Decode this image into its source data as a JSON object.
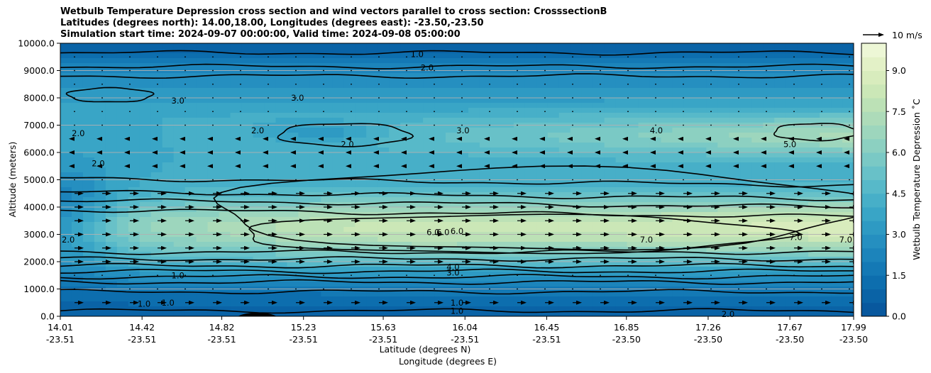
{
  "chart_data": {
    "type": "heatmap",
    "title_lines": [
      "Wetbulb Temperature Depression cross section and wind vectors parallel to cross section: CrosssectionB",
      "Latitudes (degrees north): 14.00,18.00, Longitudes (degrees east): -23.50,-23.50",
      "Simulation start time: 2024-09-07 00:00:00, Valid time: 2024-09-08 05:00:00"
    ],
    "xlabel_lat": "Latitude (degrees N)",
    "xlabel_lon": "Longitude (degrees E)",
    "ylabel": "Altitude (meters)",
    "colorbar_label": "Wetbulb Temperature Depression ˚C",
    "quiver_key": "10 m/s",
    "x_ticks": [
      {
        "lat": "14.01",
        "lon": "-23.51",
        "v": 14.01
      },
      {
        "lat": "14.42",
        "lon": "-23.51",
        "v": 14.42
      },
      {
        "lat": "14.82",
        "lon": "-23.51",
        "v": 14.82
      },
      {
        "lat": "15.23",
        "lon": "-23.51",
        "v": 15.23
      },
      {
        "lat": "15.63",
        "lon": "-23.51",
        "v": 15.63
      },
      {
        "lat": "16.04",
        "lon": "-23.51",
        "v": 16.04
      },
      {
        "lat": "16.45",
        "lon": "-23.51",
        "v": 16.45
      },
      {
        "lat": "16.85",
        "lon": "-23.50",
        "v": 16.85
      },
      {
        "lat": "17.26",
        "lon": "-23.50",
        "v": 17.26
      },
      {
        "lat": "17.67",
        "lon": "-23.50",
        "v": 17.67
      },
      {
        "lat": "17.99",
        "lon": "-23.50",
        "v": 17.99
      }
    ],
    "xlim": [
      14.01,
      17.99
    ],
    "y_ticks": [
      "0.0",
      "1000.0",
      "2000.0",
      "3000.0",
      "4000.0",
      "5000.0",
      "6000.0",
      "7000.0",
      "8000.0",
      "9000.0",
      "10000.0"
    ],
    "ylim": [
      0,
      10000
    ],
    "colorbar_ticks": [
      "0.0",
      "1.5",
      "3.0",
      "4.5",
      "6.0",
      "7.5",
      "9.0"
    ],
    "colorbar_range": [
      0,
      10
    ],
    "levels": [
      0,
      0.5,
      1,
      1.5,
      2,
      2.5,
      3,
      3.5,
      4,
      4.5,
      5,
      5.5,
      6,
      6.5,
      7,
      7.5,
      8,
      8.5,
      9,
      9.5,
      10
    ],
    "colormap": [
      "#08589e",
      "#0a63a6",
      "#0d6eae",
      "#1479b5",
      "#1c84bb",
      "#258fc0",
      "#2e9ac3",
      "#39a5c6",
      "#47afc8",
      "#57b9c9",
      "#68c1c8",
      "#7ac9c5",
      "#8cd0c1",
      "#9dd6bd",
      "#addbb9",
      "#bce1b6",
      "#cbe7b7",
      "#d8ecbd",
      "#e3f1c7",
      "#edf7d6"
    ],
    "grid": "horizontal",
    "wind": "mostly +x at 2000–5000 m and near 500 m",
    "contour_labels": [
      {
        "t": "1.0",
        "lat": 15.8,
        "alt": 9600
      },
      {
        "t": "2.0",
        "lat": 15.85,
        "alt": 9100
      },
      {
        "t": "3.0",
        "lat": 14.6,
        "alt": 7900
      },
      {
        "t": "3.0",
        "lat": 15.2,
        "alt": 8000
      },
      {
        "t": "2.0",
        "lat": 14.1,
        "alt": 6700
      },
      {
        "t": "2.0",
        "lat": 15.0,
        "alt": 6800
      },
      {
        "t": "2.0",
        "lat": 15.45,
        "alt": 6300
      },
      {
        "t": "3.0",
        "lat": 16.03,
        "alt": 6800
      },
      {
        "t": "4.0",
        "lat": 17.0,
        "alt": 6800
      },
      {
        "t": "5.0",
        "lat": 17.67,
        "alt": 6300
      },
      {
        "t": "2.0",
        "lat": 14.2,
        "alt": 5600
      },
      {
        "t": "2.0",
        "lat": 14.05,
        "alt": 2800
      },
      {
        "t": "6.0",
        "lat": 15.88,
        "alt": 3080
      },
      {
        "t": "6.0",
        "lat": 15.93,
        "alt": 3080
      },
      {
        "t": "6.0",
        "lat": 16.0,
        "alt": 3120
      },
      {
        "t": "7.0",
        "lat": 16.95,
        "alt": 2800
      },
      {
        "t": "7.0",
        "lat": 17.7,
        "alt": 2900
      },
      {
        "t": "7.0",
        "lat": 17.95,
        "alt": 2800
      },
      {
        "t": "4.0",
        "lat": 15.98,
        "alt": 1800
      },
      {
        "t": "3.0",
        "lat": 15.98,
        "alt": 1600
      },
      {
        "t": "1.0",
        "lat": 14.6,
        "alt": 1500
      },
      {
        "t": "1.0",
        "lat": 16.0,
        "alt": 500
      },
      {
        "t": "1.0",
        "lat": 16.0,
        "alt": 190
      },
      {
        "t": "1.0",
        "lat": 14.55,
        "alt": 500
      },
      {
        "t": "1.0",
        "lat": 14.43,
        "alt": 450
      },
      {
        "t": "2.0",
        "lat": 17.36,
        "alt": 80
      }
    ]
  }
}
